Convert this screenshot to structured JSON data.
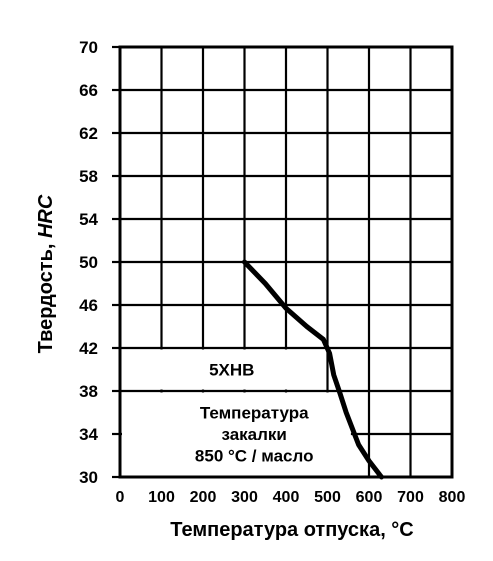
{
  "chart_data": {
    "type": "line",
    "title": "",
    "xlabel": "Температура отпуска, °С",
    "ylabel_main": "Твердость, ",
    "ylabel_unit": "HRC",
    "xlim": [
      0,
      800
    ],
    "ylim": [
      30,
      70
    ],
    "xticks": [
      "0",
      "100",
      "200",
      "300",
      "400",
      "500",
      "600",
      "700",
      "800"
    ],
    "yticks": [
      "30",
      "34",
      "38",
      "42",
      "46",
      "50",
      "54",
      "58",
      "62",
      "66",
      "70"
    ],
    "grid": true,
    "series": [
      {
        "x": [
          300,
          350,
          400,
          450,
          490,
          505,
          515,
          530,
          545,
          575,
          600,
          630
        ],
        "y": [
          50,
          48,
          45.7,
          44,
          42.8,
          41.5,
          39.5,
          37.8,
          36,
          33,
          31.5,
          30
        ]
      }
    ],
    "annotations": {
      "grade": "5ХНВ",
      "quench_line1": "Температура",
      "quench_line2": "закалки",
      "quench_line3": "850 °С / масло"
    }
  }
}
